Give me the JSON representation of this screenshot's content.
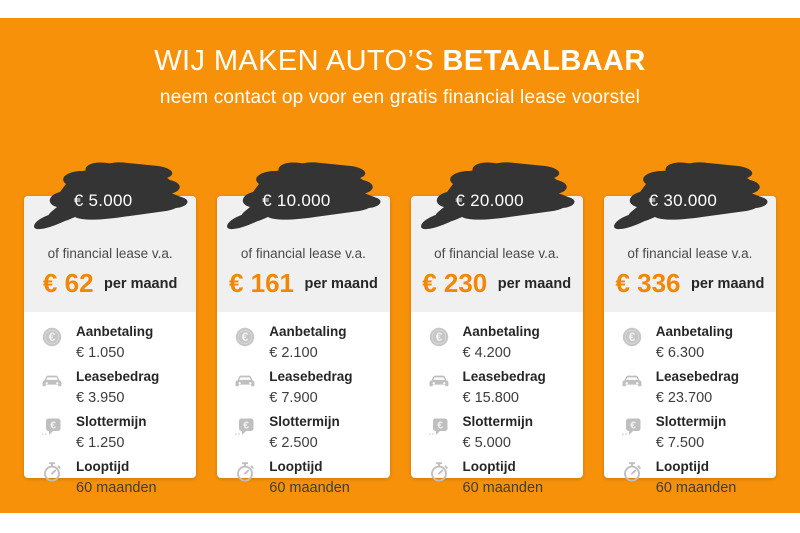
{
  "header": {
    "title_regular": "WIJ MAKEN AUTO’S ",
    "title_bold": "BETAALBAAR",
    "subtitle": "neem contact op voor een gratis financial lease voorstel"
  },
  "labels": {
    "lease_intro": "of financial lease v.a.",
    "per_month": "per maand"
  },
  "colors": {
    "background_orange": "#F8910A",
    "price_orange": "#F28705",
    "brush_dark": "#343434",
    "card_header_gray": "#F0F0F0",
    "card_body_white": "#FFFFFF",
    "icon_gray": "#BFBFBF",
    "title_white": "#FFFFFF"
  },
  "cards": [
    {
      "badge_amount": "€ 5.000",
      "monthly_price": "€ 62",
      "specs": [
        {
          "icon": "euro-coin-icon",
          "label": "Aanbetaling",
          "value": "€ 1.050"
        },
        {
          "icon": "car-icon",
          "label": "Leasebedrag",
          "value": "€ 3.950"
        },
        {
          "icon": "price-bubble-icon",
          "label": "Slottermijn",
          "value": "€ 1.250"
        },
        {
          "icon": "stopwatch-icon",
          "label": "Looptijd",
          "value": "60 maanden"
        }
      ]
    },
    {
      "badge_amount": "€ 10.000",
      "monthly_price": "€ 161",
      "specs": [
        {
          "icon": "euro-coin-icon",
          "label": "Aanbetaling",
          "value": "€ 2.100"
        },
        {
          "icon": "car-icon",
          "label": "Leasebedrag",
          "value": "€ 7.900"
        },
        {
          "icon": "price-bubble-icon",
          "label": "Slottermijn",
          "value": "€ 2.500"
        },
        {
          "icon": "stopwatch-icon",
          "label": "Looptijd",
          "value": "60 maanden"
        }
      ]
    },
    {
      "badge_amount": "€ 20.000",
      "monthly_price": "€ 230",
      "specs": [
        {
          "icon": "euro-coin-icon",
          "label": "Aanbetaling",
          "value": "€ 4.200"
        },
        {
          "icon": "car-icon",
          "label": "Leasebedrag",
          "value": "€ 15.800"
        },
        {
          "icon": "price-bubble-icon",
          "label": "Slottermijn",
          "value": "€ 5.000"
        },
        {
          "icon": "stopwatch-icon",
          "label": "Looptijd",
          "value": "60 maanden"
        }
      ]
    },
    {
      "badge_amount": "€ 30.000",
      "monthly_price": "€ 336",
      "specs": [
        {
          "icon": "euro-coin-icon",
          "label": "Aanbetaling",
          "value": "€ 6.300"
        },
        {
          "icon": "car-icon",
          "label": "Leasebedrag",
          "value": "€ 23.700"
        },
        {
          "icon": "price-bubble-icon",
          "label": "Slottermijn",
          "value": "€ 7.500"
        },
        {
          "icon": "stopwatch-icon",
          "label": "Looptijd",
          "value": "60 maanden"
        }
      ]
    }
  ]
}
